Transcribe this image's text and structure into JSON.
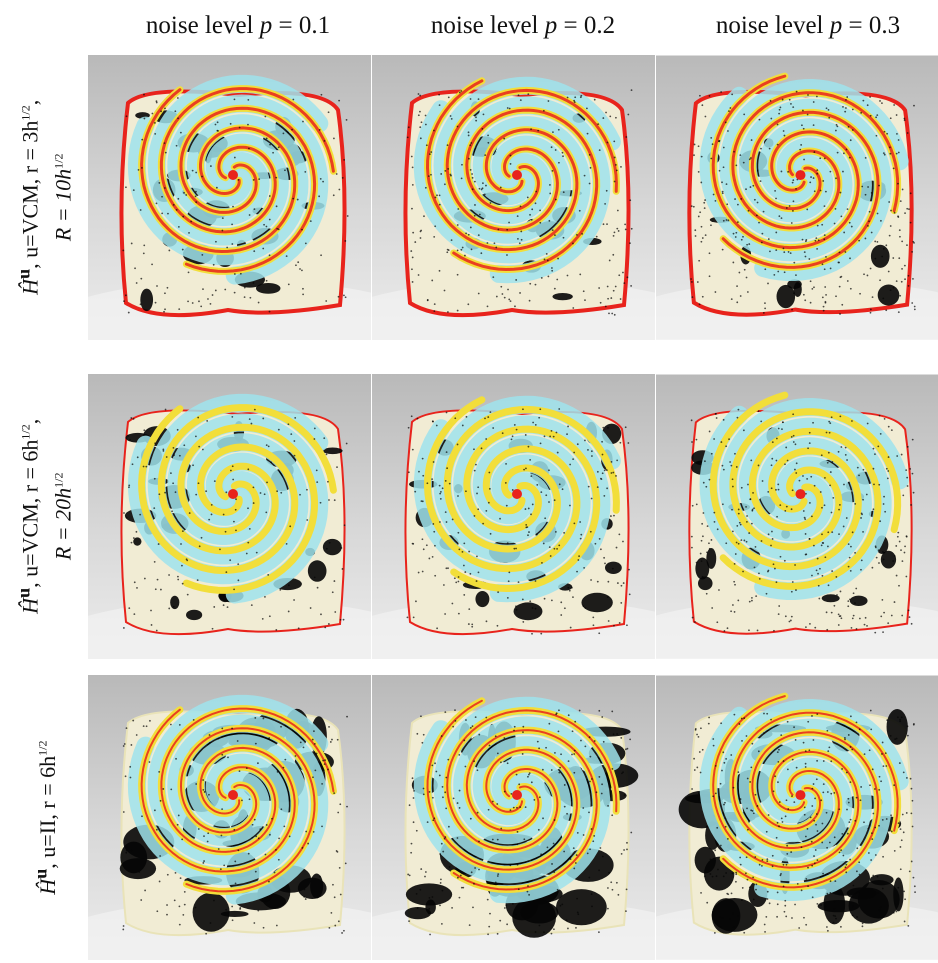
{
  "column_headers": [
    {
      "prefix": "noise level ",
      "var": "p",
      "value": " = 0.1"
    },
    {
      "prefix": "noise level ",
      "var": "p",
      "value": " = 0.2"
    },
    {
      "prefix": "noise level ",
      "var": "p",
      "value": " = 0.3"
    }
  ],
  "rows": [
    {
      "line1": "Ĥ",
      "line1_sup": "u",
      "line1_rest": ", u=VCM, r = 3h",
      "line1_exp": "1/2",
      "line2": "R = 10h",
      "line2_exp": "1/2",
      "method_bold": "u",
      "method": "VCM",
      "r": "3h½",
      "R": "10h½"
    },
    {
      "line1": "Ĥ",
      "line1_sup": "u",
      "line1_rest": ", u=VCM, r = 6h",
      "line1_exp": "1/2",
      "line2": "R = 20h",
      "line2_exp": "1/2",
      "method_bold": "u",
      "method": "VCM",
      "r": "6h½",
      "R": "20h½"
    },
    {
      "line1": "Ĥ",
      "line1_sup": "u",
      "line1_rest": ", u=II, r = 6h",
      "line1_exp": "1/2",
      "line2": "",
      "line2_exp": "",
      "method_bold": "u",
      "method": "II",
      "r": "6h½",
      "R": ""
    }
  ],
  "colors": {
    "background_top": "#b9b9b9",
    "background_bottom": "#ececec",
    "surface_base": "#f1ecd4",
    "cyan": "#9fe3ec",
    "yellow": "#f2de3a",
    "red": "#e8231c",
    "black": "#050505"
  }
}
